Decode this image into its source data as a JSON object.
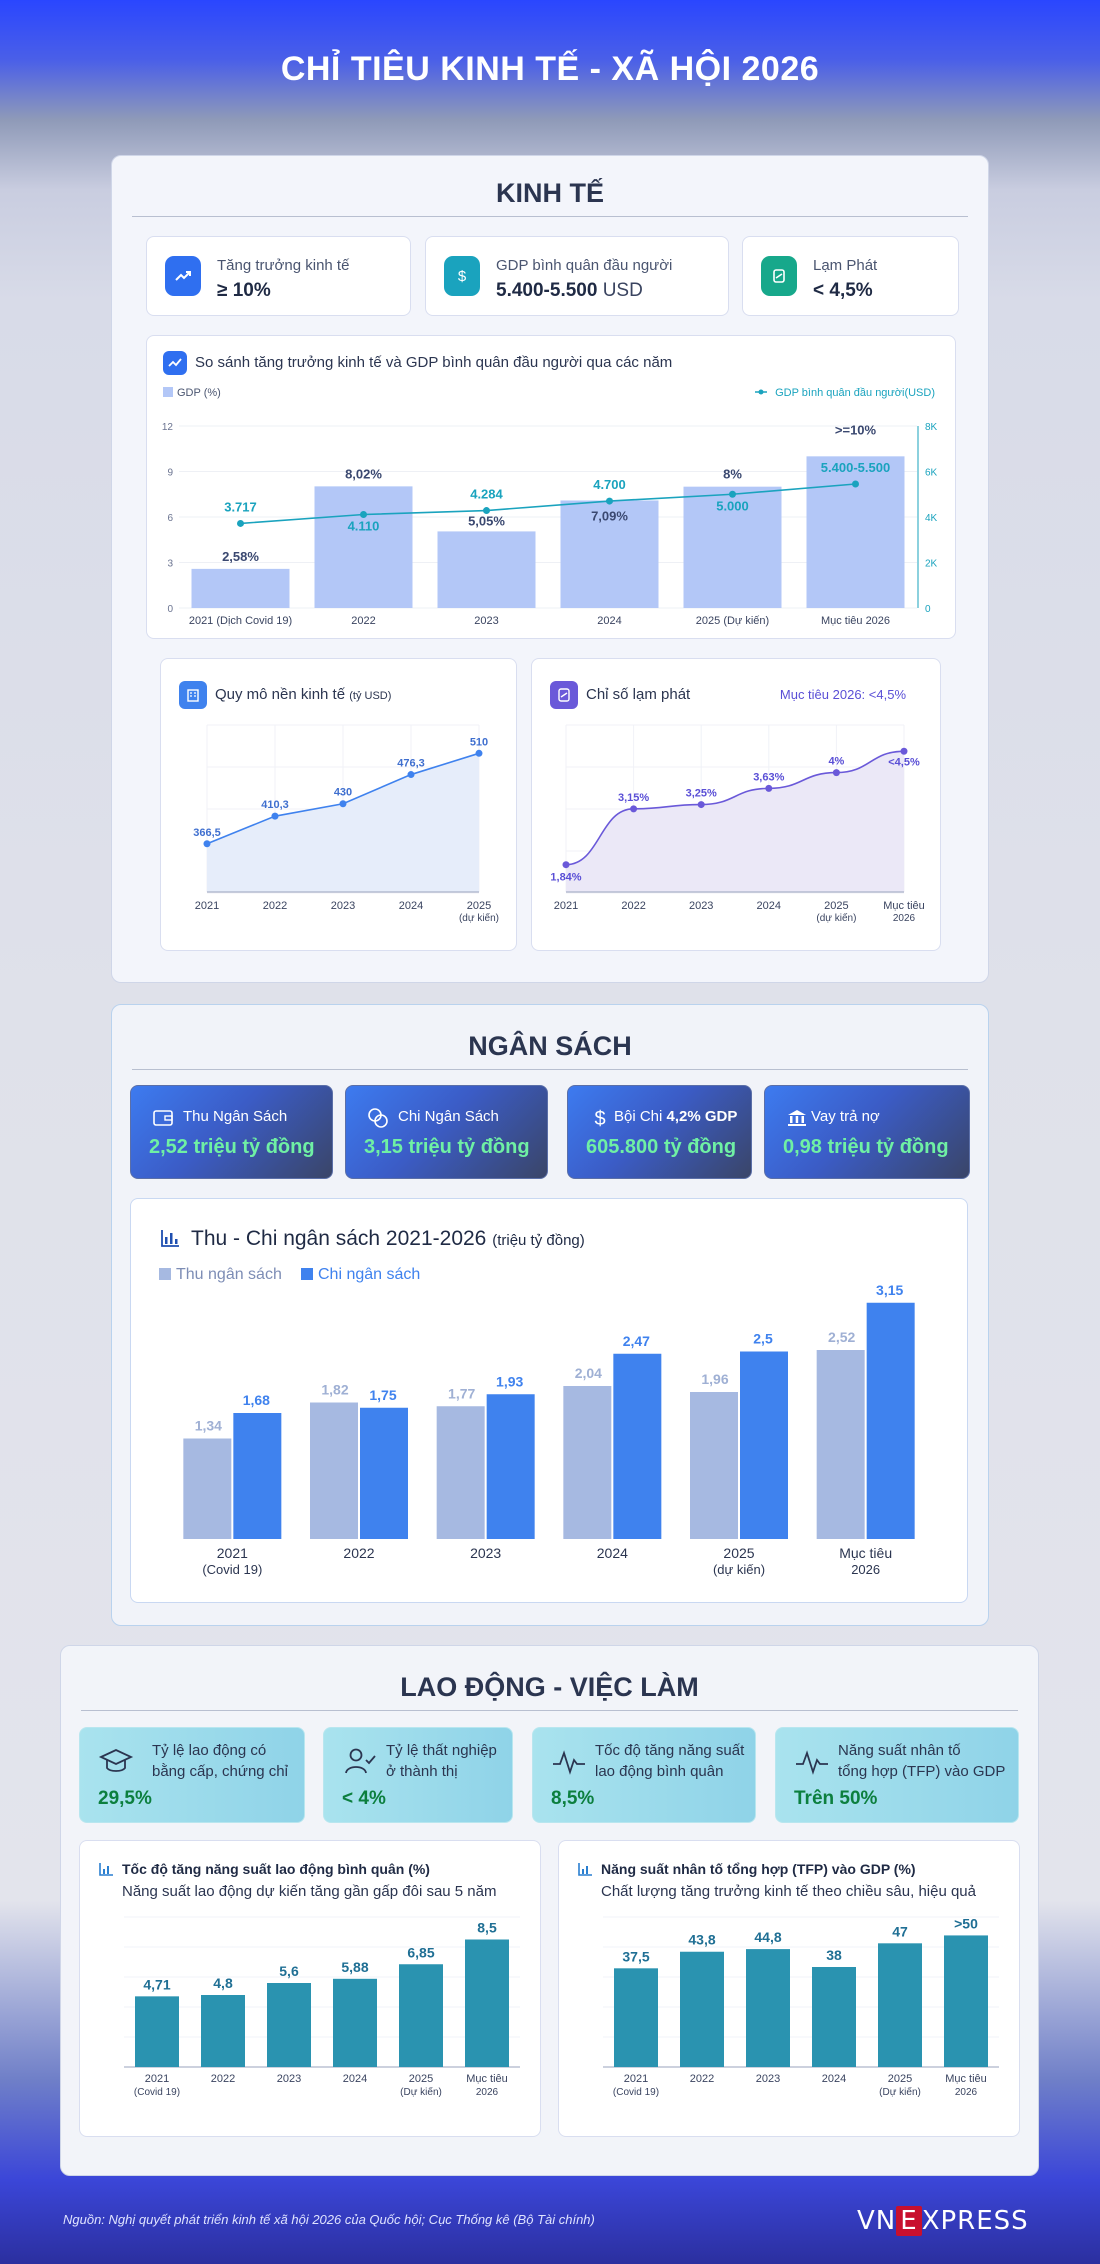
{
  "title": "CHỈ TIÊU KINH TẾ - XÃ HỘI 2026",
  "kinh_te": {
    "heading": "KINH TẾ",
    "cards": [
      {
        "label": "Tăng trưởng kinh tế",
        "value": "≥ 10%",
        "unit": ""
      },
      {
        "label": "GDP bình quân đầu người",
        "value": "5.400-5.500",
        "unit": "USD"
      },
      {
        "label": "Lạm Phát",
        "value": "< 4,5%",
        "unit": ""
      }
    ],
    "compare_title": "So sánh tăng trưởng kinh tế và GDP bình quân đầu người qua các năm",
    "scale_title": "Quy mô nền kinh tế",
    "scale_unit": "(tỷ USD)",
    "inflation_title": "Chỉ số lạm phát",
    "inflation_target": "Mục tiêu 2026: <4,5%"
  },
  "ngan_sach": {
    "heading": "NGÂN SÁCH",
    "cards": [
      {
        "label": "Thu Ngân Sách",
        "value": "2,52 triệu tỷ đồng"
      },
      {
        "label": "Chi Ngân Sách",
        "value": "3,15 triệu tỷ đồng"
      },
      {
        "label": "Bội Chi",
        "label_bold": "4,2% GDP",
        "value": "605.800 tỷ đồng"
      },
      {
        "label": "Vay trả nợ",
        "value": "0,98 triệu tỷ đồng"
      }
    ],
    "chart_title": "Thu - Chi ngân sách 2021-2026",
    "chart_unit": "(triệu tỷ đồng)"
  },
  "lao_dong": {
    "heading": "LAO ĐỘNG - VIỆC LÀM",
    "cards": [
      {
        "label_1": "Tỷ lệ lao động có",
        "label_2": "bằng cấp, chứng chỉ",
        "value": "29,5%"
      },
      {
        "label_1": "Tỷ lệ thất nghiệp",
        "label_2": "ở thành thị",
        "value": "< 4%"
      },
      {
        "label_1": "Tốc độ tăng năng suất",
        "label_2": "lao động bình quân",
        "value": "8,5%"
      },
      {
        "label_1": "Năng suất nhân tố",
        "label_2": "tổng hợp (TFP) vào GDP",
        "value": "Trên 50%"
      }
    ],
    "prod_title": "Tốc độ tăng năng suất lao động bình quân (%)",
    "prod_sub": "Năng suất lao động dự kiến tăng gần gấp đôi sau 5 năm",
    "tfp_title": "Năng suất nhân tố tổng hợp (TFP) vào GDP (%)",
    "tfp_sub": "Chất lượng tăng trưởng kinh tế theo chiều sâu, hiệu quả"
  },
  "footer": {
    "source": "Nguồn: Nghị quyết phát triển kinh tế xã hội 2026 của Quốc hội; Cục Thống kê (Bộ Tài chính)",
    "logo_left": "VN",
    "logo_mid": "E",
    "logo_right": "XPRESS"
  },
  "colors": {
    "gdp_bar": "#b3c7f7",
    "gdp_line": "#1aa3be",
    "thu": "#a6b9e1",
    "chi": "#3f82ee",
    "labor_bar": "#2a93b0"
  },
  "chart_data": [
    {
      "type": "bar",
      "id": "gdp_compare",
      "categories": [
        "2021 (Dịch Covid 19)",
        "2022",
        "2023",
        "2024",
        "2025 (Dự kiến)",
        "Mục tiêu 2026"
      ],
      "series": [
        {
          "name": "GDP (%)",
          "values": [
            2.58,
            8.02,
            5.05,
            7.09,
            8,
            10
          ],
          "labels": [
            "2,58%",
            "8,02%",
            "5,05%",
            "7,09%",
            "8%",
            ">=10%"
          ]
        },
        {
          "name": "GDP bình quân đầu người(USD)",
          "type": "line",
          "values": [
            3717,
            4110,
            4284,
            4700,
            5000,
            5450
          ],
          "labels": [
            "3.717",
            "4.110",
            "4.284",
            "4.700",
            "5.000",
            "5.400-5.500"
          ]
        }
      ],
      "y_left": {
        "ticks": [
          "0",
          "3",
          "6",
          "9",
          "12"
        ],
        "range": [
          0,
          12
        ]
      },
      "y_right": {
        "ticks": [
          "0",
          "2K",
          "4K",
          "6K",
          "8K"
        ],
        "range": [
          0,
          8000
        ]
      }
    },
    {
      "type": "area",
      "id": "economy_scale",
      "categories": [
        "2021",
        "2022",
        "2023",
        "2024",
        "2025"
      ],
      "sub_labels": [
        "",
        "",
        "",
        "",
        "(dự kiến)"
      ],
      "values": [
        366.5,
        410.3,
        430,
        476.3,
        510
      ],
      "labels": [
        "366,5",
        "410,3",
        "430",
        "476,3",
        "510"
      ]
    },
    {
      "type": "area",
      "id": "inflation",
      "categories": [
        "2021",
        "2022",
        "2023",
        "2024",
        "2025",
        "Mục tiêu"
      ],
      "sub_labels": [
        "",
        "",
        "",
        "",
        "(dự kiến)",
        "2026"
      ],
      "values": [
        1.84,
        3.15,
        3.25,
        3.63,
        4,
        4.5
      ],
      "labels": [
        "1,84%",
        "3,15%",
        "3,25%",
        "3,63%",
        "4%",
        "<4,5%"
      ]
    },
    {
      "type": "bar",
      "id": "budget",
      "categories": [
        "2021",
        "2022",
        "2023",
        "2024",
        "2025",
        "Mục tiêu"
      ],
      "sub_labels": [
        "(Covid 19)",
        "",
        "",
        "",
        "(dự kiến)",
        "2026"
      ],
      "series": [
        {
          "name": "Thu ngân sách",
          "values": [
            1.34,
            1.82,
            1.77,
            2.04,
            1.96,
            2.52
          ],
          "labels": [
            "1,34",
            "1,82",
            "1,77",
            "2,04",
            "1,96",
            "2,52"
          ]
        },
        {
          "name": "Chi ngân sách",
          "values": [
            1.68,
            1.75,
            1.93,
            2.47,
            2.5,
            3.15
          ],
          "labels": [
            "1,68",
            "1,75",
            "1,93",
            "2,47",
            "2,5",
            "3,15"
          ]
        }
      ]
    },
    {
      "type": "bar",
      "id": "labor_productivity",
      "categories": [
        "2021",
        "2022",
        "2023",
        "2024",
        "2025",
        "Mục tiêu"
      ],
      "sub_labels": [
        "(Covid 19)",
        "",
        "",
        "",
        "(Dự kiến)",
        "2026"
      ],
      "values": [
        4.71,
        4.8,
        5.6,
        5.88,
        6.85,
        8.5
      ],
      "labels": [
        "4,71",
        "4,8",
        "5,6",
        "5,88",
        "6,85",
        "8,5"
      ]
    },
    {
      "type": "bar",
      "id": "tfp",
      "categories": [
        "2021",
        "2022",
        "2023",
        "2024",
        "2025",
        "Mục tiêu"
      ],
      "sub_labels": [
        "(Covid 19)",
        "",
        "",
        "",
        "(Dự kiến)",
        "2026"
      ],
      "values": [
        37.5,
        43.8,
        44.8,
        38,
        47,
        50
      ],
      "labels": [
        "37,5",
        "43,8",
        "44,8",
        "38",
        "47",
        ">50"
      ]
    }
  ]
}
